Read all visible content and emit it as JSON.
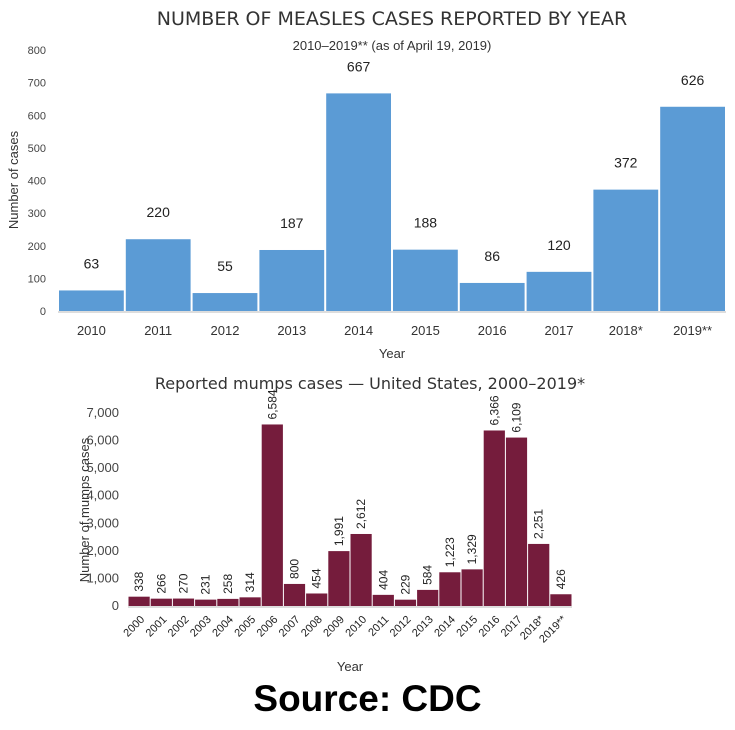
{
  "chart_data": [
    {
      "type": "bar",
      "title": "NUMBER OF MEASLES CASES REPORTED BY YEAR",
      "subtitle": "2010–2019** (as of April 19, 2019)",
      "xlabel": "Year",
      "ylabel": "Number of cases",
      "categories": [
        "2010",
        "2011",
        "2012",
        "2013",
        "2014",
        "2015",
        "2016",
        "2017",
        "2018*",
        "2019**"
      ],
      "values": [
        63,
        220,
        55,
        187,
        667,
        188,
        86,
        120,
        372,
        626
      ],
      "data_labels": [
        "63",
        "220",
        "55",
        "187",
        "667",
        "188",
        "86",
        "120",
        "372",
        "626"
      ],
      "yticks": [
        "0",
        "100",
        "200",
        "300",
        "400",
        "500",
        "600",
        "700",
        "800"
      ],
      "ylim": [
        0,
        800
      ],
      "grid": false,
      "color": "#5b9bd5"
    },
    {
      "type": "bar",
      "title": "Reported mumps cases — United States, 2000–2019*",
      "xlabel": "Year",
      "ylabel": "Number of mumps cases",
      "categories": [
        "2000",
        "2001",
        "2002",
        "2003",
        "2004",
        "2005",
        "2006",
        "2007",
        "2008",
        "2009",
        "2010",
        "2011",
        "2012",
        "2013",
        "2014",
        "2015",
        "2016",
        "2017",
        "2018*",
        "2019**"
      ],
      "values": [
        338,
        266,
        270,
        231,
        258,
        314,
        6584,
        800,
        454,
        1991,
        2612,
        404,
        229,
        584,
        1223,
        1329,
        6366,
        6109,
        2251,
        426
      ],
      "data_labels": [
        "338",
        "266",
        "270",
        "231",
        "258",
        "314",
        "6,584",
        "800",
        "454",
        "1,991",
        "2,612",
        "404",
        "229",
        "584",
        "1,223",
        "1,329",
        "6,366",
        "6,109",
        "2,251",
        "426"
      ],
      "yticks": [
        "0",
        "1,000",
        "2,000",
        "3,000",
        "4,000",
        "5,000",
        "6,000",
        "7,000"
      ],
      "ylim": [
        0,
        7000
      ],
      "grid": false,
      "color": "#751c3c"
    }
  ],
  "footer": {
    "source": "Source: CDC"
  }
}
